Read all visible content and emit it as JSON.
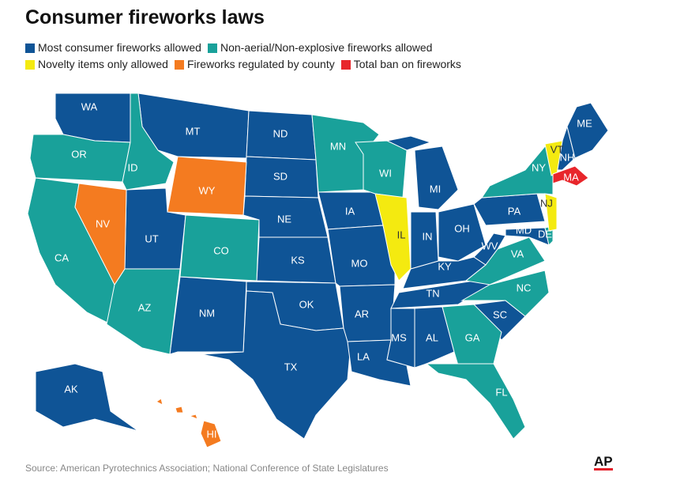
{
  "title": "Consumer fireworks laws",
  "legend": [
    {
      "name": "Most consumer fireworks allowed",
      "color": "#0f5496",
      "states": [
        "WA",
        "MT",
        "ND",
        "SD",
        "NE",
        "KS",
        "OK",
        "TX",
        "NM",
        "UT",
        "IA",
        "MO",
        "AR",
        "LA",
        "MS",
        "AL",
        "TN",
        "KY",
        "IN",
        "MI",
        "OH",
        "WV",
        "PA",
        "SC",
        "MD",
        "NH",
        "ME",
        "AK"
      ]
    },
    {
      "name": "Non-aerial/Non-explosive fireworks allowed",
      "color": "#19a19a",
      "states": [
        "OR",
        "CA",
        "ID",
        "AZ",
        "CO",
        "MN",
        "WI",
        "GA",
        "FL",
        "NC",
        "VA",
        "DE",
        "NY"
      ]
    },
    {
      "name": "Novelty items only allowed",
      "color": "#f4ea10",
      "states": [
        "IL",
        "VT",
        "NJ"
      ]
    },
    {
      "name": "Fireworks regulated by county",
      "color": "#f47b20",
      "states": [
        "NV",
        "WY",
        "HI"
      ]
    },
    {
      "name": "Total ban on fireworks",
      "color": "#e8262b",
      "states": [
        "MA"
      ]
    }
  ],
  "source": "Source: American Pyrotechnics Association; National Conference of State Legislatures",
  "logo": "AP"
}
